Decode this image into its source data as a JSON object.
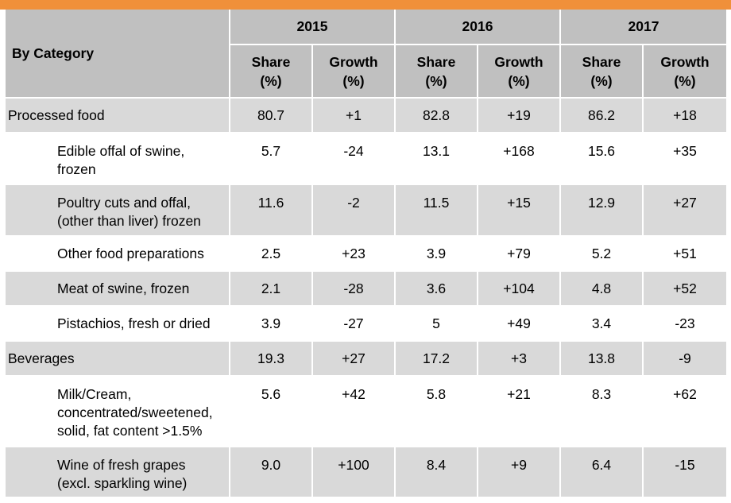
{
  "table": {
    "corner_label": "By Category",
    "years": [
      "2015",
      "2016",
      "2017"
    ],
    "subheaders": {
      "share": "Share\n(%)",
      "growth": "Growth\n(%)"
    },
    "rows": [
      {
        "label": "Processed food",
        "level": "category",
        "shade": true,
        "values": [
          "80.7",
          "+1",
          "82.8",
          "+19",
          "86.2",
          "+18"
        ]
      },
      {
        "label": "Edible offal of swine, frozen",
        "level": "item",
        "shade": false,
        "values": [
          "5.7",
          "-24",
          "13.1",
          "+168",
          "15.6",
          "+35"
        ]
      },
      {
        "label": "Poultry cuts and offal, (other than liver) frozen",
        "level": "item",
        "shade": true,
        "values": [
          "11.6",
          "-2",
          "11.5",
          "+15",
          "12.9",
          "+27"
        ]
      },
      {
        "label": "Other food preparations",
        "level": "item",
        "shade": false,
        "values": [
          "2.5",
          "+23",
          "3.9",
          "+79",
          "5.2",
          "+51"
        ]
      },
      {
        "label": "Meat of swine, frozen",
        "level": "item",
        "shade": true,
        "values": [
          "2.1",
          "-28",
          "3.6",
          "+104",
          "4.8",
          "+52"
        ]
      },
      {
        "label": "Pistachios, fresh or dried",
        "level": "item",
        "shade": false,
        "values": [
          "3.9",
          "-27",
          "5",
          "+49",
          "3.4",
          "-23"
        ]
      },
      {
        "label": "Beverages",
        "level": "category",
        "shade": true,
        "values": [
          "19.3",
          "+27",
          "17.2",
          "+3",
          "13.8",
          "-9"
        ]
      },
      {
        "label": "Milk/Cream, concentrated/sweetened, solid, fat content >1.5%",
        "level": "item",
        "shade": false,
        "values": [
          "5.6",
          "+42",
          "5.8",
          "+21",
          "8.3",
          "+62"
        ]
      },
      {
        "label": "Wine of fresh grapes (excl. sparkling wine)",
        "level": "item",
        "shade": true,
        "values": [
          "9.0",
          "+100",
          "8.4",
          "+9",
          "6.4",
          "-15"
        ]
      }
    ]
  },
  "colors": {
    "accent_bar": "#f0903a",
    "header_fill": "#c0c0c0",
    "row_shade": "#d9d9d9"
  },
  "chart_data": {
    "type": "table",
    "title": "",
    "columns": [
      "By Category",
      "2015 Share (%)",
      "2015 Growth (%)",
      "2016 Share (%)",
      "2016 Growth (%)",
      "2017 Share (%)",
      "2017 Growth (%)"
    ],
    "series": [
      {
        "name": "Processed food",
        "values": [
          80.7,
          1,
          82.8,
          19,
          86.2,
          18
        ]
      },
      {
        "name": "Edible offal of swine, frozen",
        "values": [
          5.7,
          -24,
          13.1,
          168,
          15.6,
          35
        ]
      },
      {
        "name": "Poultry cuts and offal, (other than liver) frozen",
        "values": [
          11.6,
          -2,
          11.5,
          15,
          12.9,
          27
        ]
      },
      {
        "name": "Other food preparations",
        "values": [
          2.5,
          23,
          3.9,
          79,
          5.2,
          51
        ]
      },
      {
        "name": "Meat of swine, frozen",
        "values": [
          2.1,
          -28,
          3.6,
          104,
          4.8,
          52
        ]
      },
      {
        "name": "Pistachios, fresh or dried",
        "values": [
          3.9,
          -27,
          5,
          49,
          3.4,
          -23
        ]
      },
      {
        "name": "Beverages",
        "values": [
          19.3,
          27,
          17.2,
          3,
          13.8,
          -9
        ]
      },
      {
        "name": "Milk/Cream, concentrated/sweetened, solid, fat content >1.5%",
        "values": [
          5.6,
          42,
          5.8,
          21,
          8.3,
          62
        ]
      },
      {
        "name": "Wine of fresh grapes (excl. sparkling wine)",
        "values": [
          9.0,
          100,
          8.4,
          9,
          6.4,
          -15
        ]
      }
    ]
  }
}
